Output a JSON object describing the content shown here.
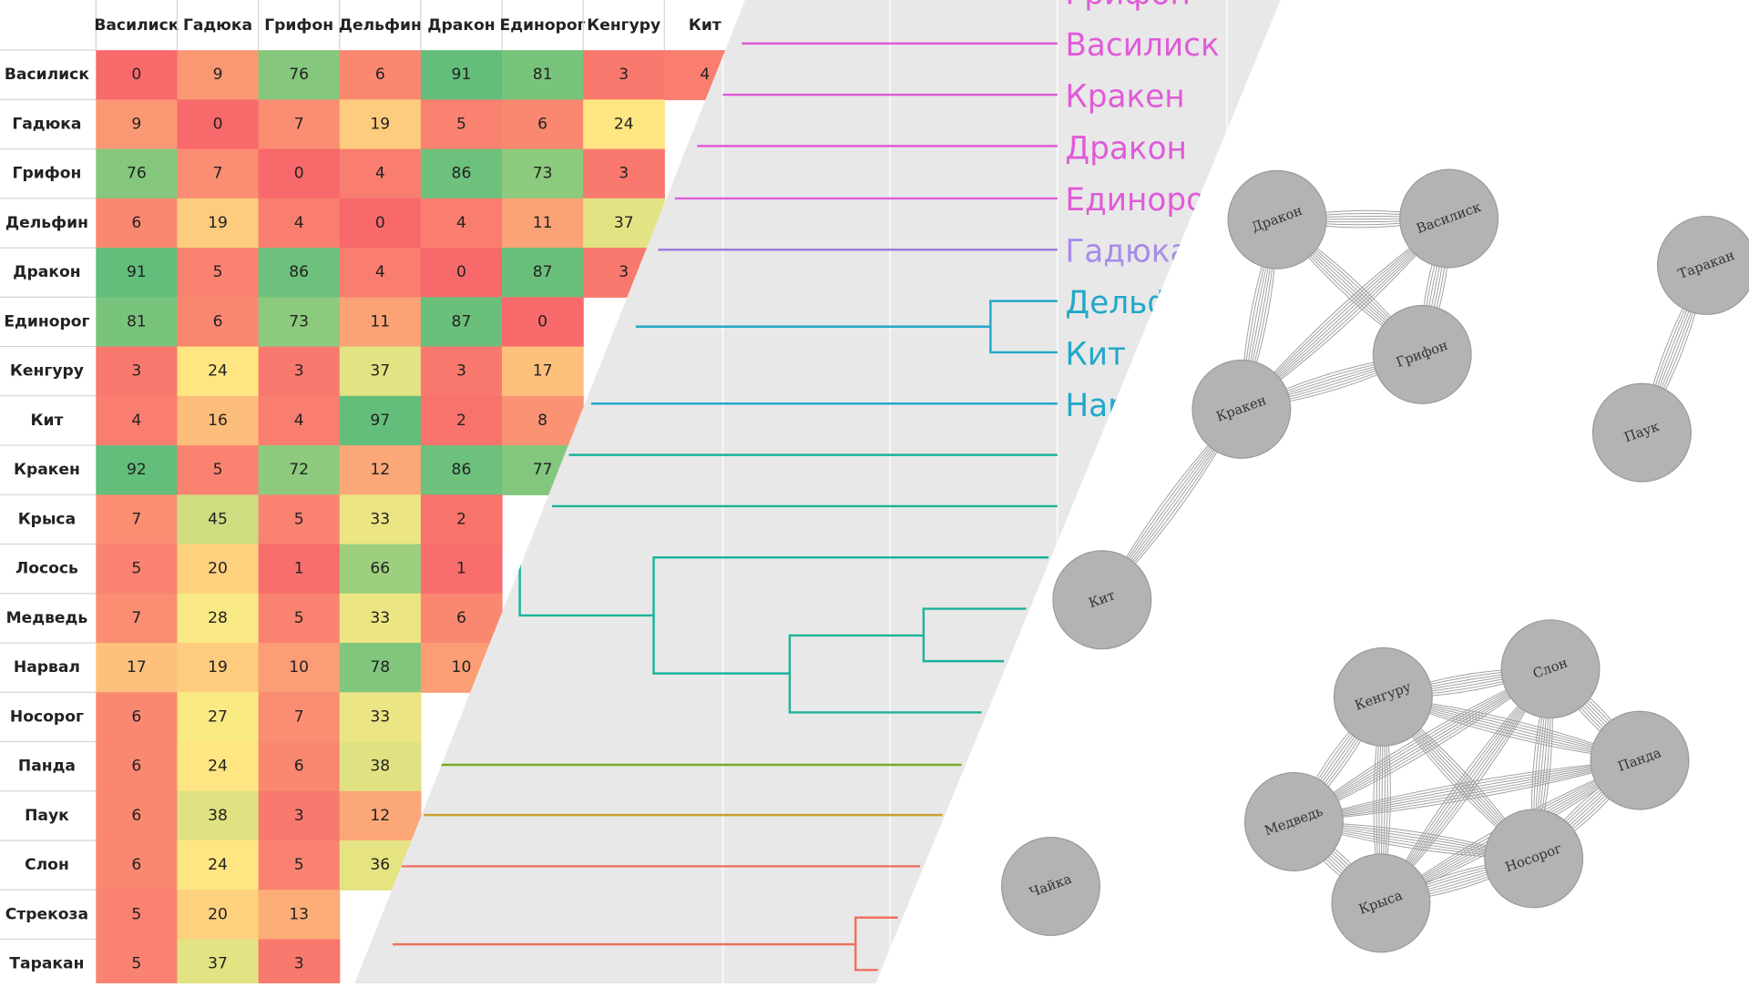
{
  "table": {
    "columns": [
      "Василиск",
      "Гадюка",
      "Грифон",
      "Дельфин",
      "Дракон",
      "Единорог",
      "Кенгуру",
      "Кит"
    ],
    "rows": [
      {
        "label": "Василиск",
        "cells": [
          0,
          9,
          76,
          6,
          91,
          81,
          3,
          4
        ]
      },
      {
        "label": "Гадюка",
        "cells": [
          9,
          0,
          7,
          19,
          5,
          6,
          24
        ]
      },
      {
        "label": "Грифон",
        "cells": [
          76,
          7,
          0,
          4,
          86,
          73,
          3
        ]
      },
      {
        "label": "Дельфин",
        "cells": [
          6,
          19,
          4,
          0,
          4,
          11,
          37
        ]
      },
      {
        "label": "Дракон",
        "cells": [
          91,
          5,
          86,
          4,
          0,
          87,
          3
        ]
      },
      {
        "label": "Единорог",
        "cells": [
          81,
          6,
          73,
          11,
          87,
          0
        ]
      },
      {
        "label": "Кенгуру",
        "cells": [
          3,
          24,
          3,
          37,
          3,
          17
        ]
      },
      {
        "label": "Кит",
        "cells": [
          4,
          16,
          4,
          97,
          2,
          8
        ]
      },
      {
        "label": "Кракен",
        "cells": [
          92,
          5,
          72,
          12,
          86,
          77
        ]
      },
      {
        "label": "Крыса",
        "cells": [
          7,
          45,
          5,
          33,
          2
        ]
      },
      {
        "label": "Лосось",
        "cells": [
          5,
          20,
          1,
          66,
          1
        ]
      },
      {
        "label": "Медведь",
        "cells": [
          7,
          28,
          5,
          33,
          6
        ]
      },
      {
        "label": "Нарвал",
        "cells": [
          17,
          19,
          10,
          78,
          10
        ]
      },
      {
        "label": "Носорог",
        "cells": [
          6,
          27,
          7,
          33
        ]
      },
      {
        "label": "Панда",
        "cells": [
          6,
          24,
          6,
          38
        ]
      },
      {
        "label": "Паук",
        "cells": [
          6,
          38,
          3,
          12
        ]
      },
      {
        "label": "Слон",
        "cells": [
          6,
          24,
          5,
          36
        ]
      },
      {
        "label": "Стрекоза",
        "cells": [
          5,
          20,
          13
        ]
      },
      {
        "label": "Таракан",
        "cells": [
          5,
          37,
          3
        ]
      }
    ]
  },
  "dendrogram": {
    "labels": [
      {
        "text": "Грифон",
        "color": "#e05bd8"
      },
      {
        "text": "Василиск",
        "color": "#e05bd8"
      },
      {
        "text": "Кракен",
        "color": "#e05bd8"
      },
      {
        "text": "Дракон",
        "color": "#e05bd8"
      },
      {
        "text": "Единорог",
        "color": "#e05bd8"
      },
      {
        "text": "Гадюка",
        "color": "#a78be8"
      },
      {
        "text": "Дельфин",
        "color": "#22a8c8"
      },
      {
        "text": "Кит",
        "color": "#22a8c8"
      },
      {
        "text": "Нарвал",
        "color": "#22a8c8"
      }
    ]
  },
  "network": {
    "nodes": [
      "Дракон",
      "Василиск",
      "Грифон",
      "Кракен",
      "Таракан",
      "Паук",
      "Кит",
      "Кенгуру",
      "Слон",
      "Панда",
      "Носорог",
      "Крыса",
      "Медведь",
      "Чайка"
    ]
  }
}
